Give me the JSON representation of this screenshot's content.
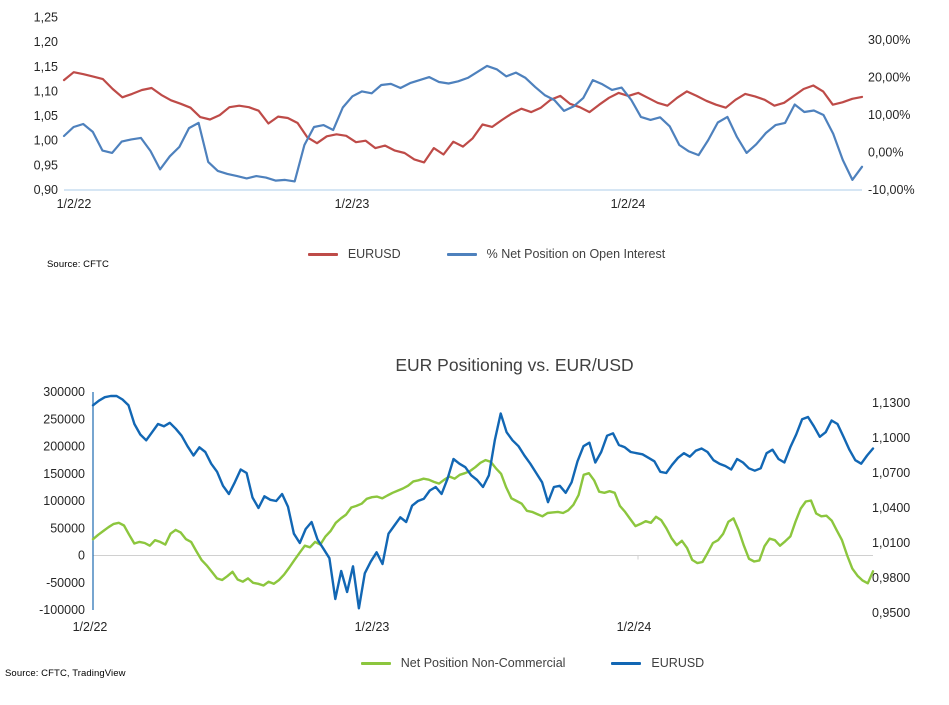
{
  "chart_data": [
    {
      "type": "line",
      "title": "",
      "source": "Source: CFTC",
      "x_ticklabels": [
        "1/2/22",
        "1/2/23",
        "1/2/24"
      ],
      "grid": "off",
      "legend_position": "bottom-center",
      "left_axis": {
        "min": 0.9,
        "max": 1.25,
        "tick_step": 0.05,
        "tick_labels": [
          "1,25",
          "1,20",
          "1,15",
          "1,10",
          "1,05",
          "1,00",
          "0,95",
          "0,90"
        ]
      },
      "right_axis": {
        "min": -10,
        "max": 30,
        "tick_step": 10,
        "tick_labels": [
          "30,00%",
          "20,00%",
          "10,00%",
          "0,00%",
          "-10,00%"
        ]
      },
      "axis_line_color": "#bdd7ee",
      "series": [
        {
          "name": "EURUSD",
          "axis": "left",
          "color": "#be4b48",
          "values": [
            1.123,
            1.139,
            1.135,
            1.13,
            1.125,
            1.105,
            1.088,
            1.095,
            1.103,
            1.107,
            1.093,
            1.082,
            1.075,
            1.067,
            1.048,
            1.043,
            1.052,
            1.068,
            1.071,
            1.068,
            1.061,
            1.035,
            1.049,
            1.046,
            1.036,
            1.007,
            0.995,
            1.009,
            1.013,
            1.01,
            0.997,
            1.0,
            0.985,
            0.99,
            0.98,
            0.975,
            0.962,
            0.956,
            0.985,
            0.972,
            0.998,
            0.988,
            1.005,
            1.033,
            1.028,
            1.042,
            1.055,
            1.065,
            1.058,
            1.067,
            1.083,
            1.091,
            1.075,
            1.068,
            1.058,
            1.073,
            1.087,
            1.097,
            1.091,
            1.097,
            1.087,
            1.077,
            1.071,
            1.087,
            1.1,
            1.091,
            1.081,
            1.073,
            1.067,
            1.083,
            1.095,
            1.09,
            1.083,
            1.071,
            1.077,
            1.091,
            1.105,
            1.112,
            1.1,
            1.073,
            1.078,
            1.085,
            1.089
          ]
        },
        {
          "name": "% Net Position on Open Interest",
          "axis": "right",
          "color": "#4e81bd",
          "values": [
            4.4,
            6.8,
            7.6,
            5.5,
            0.5,
            -0.1,
            2.9,
            3.5,
            3.9,
            0.4,
            -4.5,
            -1.0,
            1.5,
            6.5,
            7.9,
            -2.5,
            -4.9,
            -5.7,
            -6.3,
            -6.9,
            -6.3,
            -6.7,
            -7.5,
            -7.3,
            -7.7,
            2.0,
            6.8,
            7.3,
            6.0,
            12.0,
            15.0,
            16.3,
            15.8,
            18.0,
            18.3,
            17.2,
            18.5,
            19.3,
            20.1,
            18.8,
            18.4,
            19.0,
            19.9,
            21.5,
            23.1,
            22.2,
            20.3,
            21.3,
            19.9,
            17.5,
            15.3,
            14.0,
            11.1,
            12.3,
            14.5,
            19.3,
            18.2,
            16.7,
            17.3,
            14.0,
            9.5,
            8.7,
            9.4,
            7.0,
            2.0,
            0.3,
            -0.7,
            3.3,
            8.0,
            9.5,
            4.1,
            -0.1,
            2.2,
            5.2,
            7.3,
            7.9,
            12.8,
            10.8,
            11.2,
            10.0,
            5.0,
            -2.0,
            -7.3,
            -3.8
          ]
        }
      ]
    },
    {
      "type": "line",
      "title": "EUR Positioning vs. EUR/USD",
      "source": "Source: CFTC, TradingView",
      "x_ticklabels": [
        "1/2/22",
        "1/2/23",
        "1/2/24"
      ],
      "grid": "zero-line-only",
      "legend_position": "bottom-center",
      "left_axis": {
        "min": -100000,
        "max": 300000,
        "tick_step": 50000,
        "tick_labels": [
          "300000",
          "250000",
          "200000",
          "150000",
          "100000",
          "50000",
          "0",
          "-50000",
          "-100000"
        ]
      },
      "right_axis": {
        "min": 0.95,
        "max": 1.13,
        "tick_step": 0.03,
        "tick_labels": [
          "1,1300",
          "1,1000",
          "1,0700",
          "1,0400",
          "1,0100",
          "0,9800",
          "0,9500"
        ]
      },
      "zero_line_color": "#d0d0d0",
      "y_axis_line_color": "#2e75b6",
      "series": [
        {
          "name": "Net Position Non-Commercial",
          "axis": "left",
          "color": "#8cc63e",
          "values": [
            30000,
            38000,
            45000,
            52000,
            58000,
            60000,
            55000,
            38000,
            22000,
            25000,
            23000,
            18000,
            28000,
            25000,
            20000,
            40000,
            47000,
            42000,
            30000,
            25000,
            8000,
            -8000,
            -18000,
            -30000,
            -42000,
            -45000,
            -38000,
            -30000,
            -44000,
            -48000,
            -42000,
            -50000,
            -52000,
            -55000,
            -48000,
            -52000,
            -45000,
            -35000,
            -22000,
            -8000,
            5000,
            18000,
            15000,
            25000,
            20000,
            35000,
            45000,
            60000,
            68000,
            75000,
            88000,
            91000,
            95000,
            104000,
            107000,
            108000,
            105000,
            110000,
            115000,
            119000,
            123000,
            128000,
            136000,
            138000,
            141000,
            139000,
            135000,
            132000,
            139000,
            145000,
            141000,
            148000,
            151000,
            155000,
            162000,
            170000,
            175000,
            172000,
            160000,
            150000,
            125000,
            105000,
            100000,
            95000,
            82000,
            80000,
            76000,
            72000,
            78000,
            79000,
            80000,
            78000,
            83000,
            93000,
            111000,
            148000,
            151000,
            138000,
            117000,
            115000,
            118000,
            115000,
            91000,
            80000,
            67000,
            54000,
            58000,
            63000,
            60000,
            71000,
            65000,
            50000,
            32000,
            19000,
            27000,
            14000,
            -8000,
            -14000,
            -12000,
            5000,
            23000,
            28000,
            40000,
            62000,
            68000,
            46000,
            18000,
            -6000,
            -11000,
            -9000,
            17000,
            31000,
            28000,
            18000,
            26000,
            35000,
            62000,
            86000,
            99000,
            101000,
            77000,
            72000,
            73000,
            64000,
            46000,
            28000,
            0,
            -24000,
            -37000,
            -46000,
            -51000,
            -29000
          ]
        },
        {
          "name": "EURUSD",
          "axis": "right",
          "color": "#1267b4",
          "values": [
            1.128,
            1.132,
            1.135,
            1.136,
            1.136,
            1.133,
            1.128,
            1.112,
            1.103,
            1.098,
            1.105,
            1.112,
            1.11,
            1.113,
            1.108,
            1.102,
            1.093,
            1.085,
            1.092,
            1.088,
            1.078,
            1.071,
            1.059,
            1.052,
            1.062,
            1.073,
            1.07,
            1.049,
            1.04,
            1.05,
            1.047,
            1.046,
            1.052,
            1.041,
            1.018,
            1.01,
            1.022,
            1.028,
            1.013,
            1.005,
            0.997,
            0.962,
            0.986,
            0.968,
            0.99,
            0.954,
            0.984,
            0.994,
            1.002,
            0.992,
            1.018,
            1.025,
            1.032,
            1.028,
            1.042,
            1.046,
            1.048,
            1.055,
            1.058,
            1.052,
            1.065,
            1.082,
            1.078,
            1.075,
            1.068,
            1.064,
            1.058,
            1.068,
            1.098,
            1.121,
            1.105,
            1.098,
            1.093,
            1.085,
            1.078,
            1.07,
            1.062,
            1.045,
            1.058,
            1.059,
            1.053,
            1.062,
            1.08,
            1.093,
            1.096,
            1.079,
            1.088,
            1.102,
            1.104,
            1.094,
            1.092,
            1.088,
            1.087,
            1.086,
            1.083,
            1.08,
            1.071,
            1.07,
            1.077,
            1.083,
            1.087,
            1.084,
            1.089,
            1.091,
            1.088,
            1.081,
            1.078,
            1.076,
            1.073,
            1.082,
            1.079,
            1.074,
            1.072,
            1.074,
            1.087,
            1.09,
            1.082,
            1.079,
            1.092,
            1.103,
            1.116,
            1.118,
            1.11,
            1.101,
            1.105,
            1.115,
            1.112,
            1.101,
            1.09,
            1.081,
            1.078,
            1.085,
            1.091
          ]
        }
      ]
    }
  ]
}
